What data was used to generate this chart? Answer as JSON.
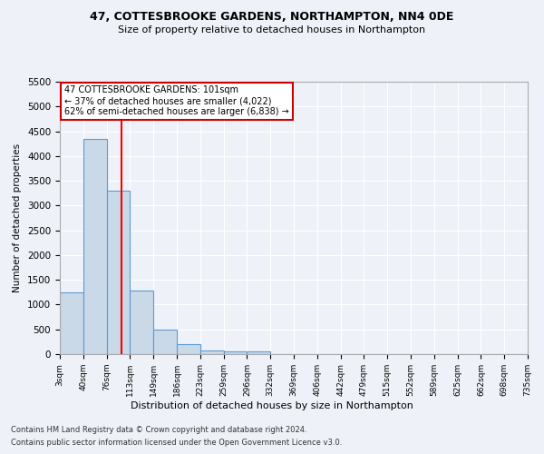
{
  "title1": "47, COTTESBROOKE GARDENS, NORTHAMPTON, NN4 0DE",
  "title2": "Size of property relative to detached houses in Northampton",
  "xlabel": "Distribution of detached houses by size in Northampton",
  "ylabel": "Number of detached properties",
  "footer1": "Contains HM Land Registry data © Crown copyright and database right 2024.",
  "footer2": "Contains public sector information licensed under the Open Government Licence v3.0.",
  "annotation_line1": "47 COTTESBROOKE GARDENS: 101sqm",
  "annotation_line2": "← 37% of detached houses are smaller (4,022)",
  "annotation_line3": "62% of semi-detached houses are larger (6,838) →",
  "bar_values": [
    1250,
    4350,
    3300,
    1280,
    490,
    210,
    80,
    60,
    55,
    0,
    0,
    0,
    0,
    0,
    0,
    0,
    0,
    0,
    0,
    0
  ],
  "bin_labels": [
    "3sqm",
    "40sqm",
    "76sqm",
    "113sqm",
    "149sqm",
    "186sqm",
    "223sqm",
    "259sqm",
    "296sqm",
    "332sqm",
    "369sqm",
    "406sqm",
    "442sqm",
    "479sqm",
    "515sqm",
    "552sqm",
    "589sqm",
    "625sqm",
    "662sqm",
    "698sqm",
    "735sqm"
  ],
  "bar_color": "#c9d9e8",
  "bar_edge_color": "#5b9bd5",
  "red_line_x": 2.65,
  "ylim": [
    0,
    5500
  ],
  "yticks": [
    0,
    500,
    1000,
    1500,
    2000,
    2500,
    3000,
    3500,
    4000,
    4500,
    5000,
    5500
  ],
  "background_color": "#eef2f8",
  "grid_color": "#ffffff",
  "annotation_box_color": "#ffffff",
  "annotation_box_edge": "#cc0000",
  "title1_fontsize": 9,
  "title2_fontsize": 8
}
